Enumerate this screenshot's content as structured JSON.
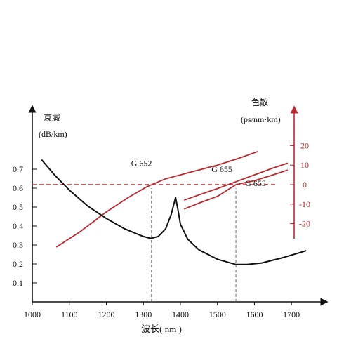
{
  "chart_data": {
    "type": "line",
    "title": "",
    "xlabel": "波长( nm )",
    "xlim": [
      1000,
      1750
    ],
    "x_ticks": [
      1000,
      1100,
      1200,
      1300,
      1400,
      1500,
      1600,
      1700
    ],
    "left_axis": {
      "label_line1": "衰减",
      "label_line2": "(dB/km)",
      "ylim": [
        0,
        0.8
      ],
      "ticks": [
        0.1,
        0.2,
        0.3,
        0.4,
        0.5,
        0.6,
        0.7
      ]
    },
    "right_axis": {
      "label_line1": "色散",
      "label_line2": "(ps/nm·km)",
      "ylim": [
        -30,
        28
      ],
      "ticks": [
        20,
        10,
        0,
        -10,
        -20
      ],
      "color": "#c0272d"
    },
    "attenuation_curve": {
      "color": "#111111",
      "points": [
        [
          1025,
          0.75
        ],
        [
          1060,
          0.67
        ],
        [
          1100,
          0.59
        ],
        [
          1150,
          0.505
        ],
        [
          1200,
          0.44
        ],
        [
          1250,
          0.385
        ],
        [
          1300,
          0.345
        ],
        [
          1320,
          0.335
        ],
        [
          1340,
          0.345
        ],
        [
          1360,
          0.385
        ],
        [
          1375,
          0.46
        ],
        [
          1387,
          0.55
        ],
        [
          1393,
          0.49
        ],
        [
          1400,
          0.41
        ],
        [
          1420,
          0.33
        ],
        [
          1450,
          0.275
        ],
        [
          1500,
          0.225
        ],
        [
          1550,
          0.197
        ],
        [
          1580,
          0.197
        ],
        [
          1620,
          0.205
        ],
        [
          1680,
          0.235
        ],
        [
          1740,
          0.27
        ]
      ]
    },
    "dispersion_series": [
      {
        "name": "G 652",
        "color": "#c0272d",
        "points": [
          [
            1065,
            -32
          ],
          [
            1130,
            -24
          ],
          [
            1200,
            -14
          ],
          [
            1260,
            -6.5
          ],
          [
            1310,
            -1
          ],
          [
            1360,
            3
          ],
          [
            1420,
            6
          ],
          [
            1500,
            10
          ],
          [
            1550,
            13
          ],
          [
            1610,
            17
          ]
        ]
      },
      {
        "name": "G 655",
        "color": "#c0272d",
        "points": [
          [
            1410,
            -8
          ],
          [
            1450,
            -5.3
          ],
          [
            1500,
            -2
          ],
          [
            1550,
            1.5
          ],
          [
            1600,
            5
          ],
          [
            1650,
            8.5
          ],
          [
            1690,
            11
          ]
        ]
      },
      {
        "name": "G 653",
        "color": "#c0272d",
        "points": [
          [
            1410,
            -12.5
          ],
          [
            1450,
            -9.5
          ],
          [
            1500,
            -6
          ],
          [
            1550,
            0
          ],
          [
            1600,
            2
          ],
          [
            1650,
            5
          ],
          [
            1690,
            7.5
          ]
        ]
      }
    ],
    "series_labels": [
      {
        "text": "G 652",
        "x": 1295,
        "y": 9.5,
        "anchor": "middle"
      },
      {
        "text": "G 655",
        "x": 1512,
        "y": 6.5,
        "anchor": "middle"
      },
      {
        "text": "G 653",
        "x": 1603,
        "y": -0.8,
        "anchor": "middle"
      }
    ],
    "zero_dispersion_line": {
      "color": "#c0272d",
      "y": 0,
      "from": 1000,
      "to": 1660
    },
    "reference_lines": [
      {
        "x": 1322,
        "y_from": 0,
        "y_to": 0.6,
        "color": "#666666"
      },
      {
        "x": 1550,
        "y_from": 0,
        "y_to": 0.6,
        "color": "#666666"
      }
    ],
    "grid": false,
    "legend": "none"
  }
}
